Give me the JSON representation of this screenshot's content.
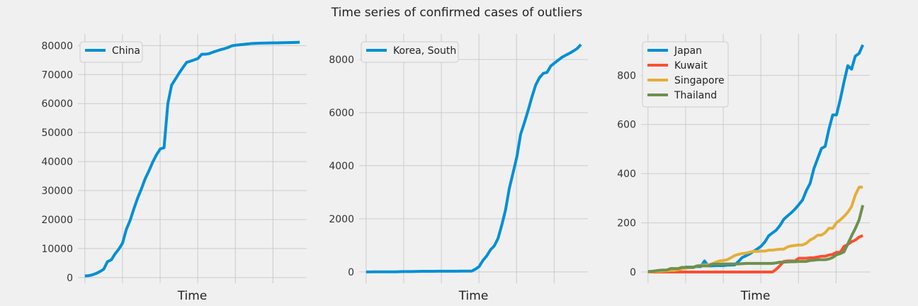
{
  "figure": {
    "suptitle": "Time series of confirmed cases of outliers"
  },
  "chart_data": [
    {
      "type": "line",
      "xlabel": "Time",
      "ylabel": "",
      "ylim": [
        -2000,
        84000
      ],
      "yticks": [
        0,
        10000,
        20000,
        30000,
        40000,
        50000,
        60000,
        70000,
        80000
      ],
      "x_ticks_labeled": false,
      "legend": "top-left",
      "grid": true,
      "x": [
        0,
        1,
        2,
        3,
        4,
        5,
        6,
        7,
        8,
        9,
        10,
        11,
        12,
        13,
        14,
        15,
        16,
        17,
        18,
        19,
        20,
        21,
        22,
        23,
        24,
        25,
        26,
        27,
        28,
        29,
        30,
        31,
        32,
        33,
        34,
        35,
        36,
        37,
        38,
        39,
        40,
        41,
        42,
        43,
        44,
        45,
        46,
        47,
        48,
        49,
        50,
        51,
        52,
        53,
        54,
        55,
        56,
        57
      ],
      "series": [
        {
          "name": "China",
          "color": "#008fd5",
          "values": [
            548,
            643,
            920,
            1406,
            2075,
            2877,
            5509,
            6087,
            8141,
            9802,
            11891,
            16630,
            19716,
            23707,
            27440,
            30587,
            34110,
            36814,
            39829,
            42354,
            44386,
            44759,
            59895,
            66358,
            68413,
            70513,
            72434,
            74211,
            74619,
            75077,
            75550,
            77001,
            77022,
            77241,
            77754,
            78166,
            78600,
            78928,
            79356,
            79932,
            80136,
            80261,
            80386,
            80537,
            80690,
            80770,
            80823,
            80860,
            80887,
            80921,
            80932,
            80945,
            80977,
            81003,
            81033,
            81058,
            81102,
            81156
          ]
        }
      ]
    },
    {
      "type": "line",
      "xlabel": "Time",
      "ylabel": "",
      "ylim": [
        -430,
        8960
      ],
      "yticks": [
        0,
        2000,
        4000,
        6000,
        8000
      ],
      "x_ticks_labeled": false,
      "legend": "top-left",
      "grid": true,
      "x": [
        0,
        1,
        2,
        3,
        4,
        5,
        6,
        7,
        8,
        9,
        10,
        11,
        12,
        13,
        14,
        15,
        16,
        17,
        18,
        19,
        20,
        21,
        22,
        23,
        24,
        25,
        26,
        27,
        28,
        29,
        30,
        31,
        32,
        33,
        34,
        35,
        36,
        37,
        38,
        39,
        40,
        41,
        42,
        43,
        44,
        45,
        46,
        47,
        48,
        49,
        50,
        51,
        52,
        53,
        54,
        55,
        56,
        57
      ],
      "series": [
        {
          "name": "Korea, South",
          "color": "#008fd5",
          "values": [
            1,
            1,
            2,
            2,
            3,
            4,
            4,
            4,
            4,
            11,
            12,
            15,
            15,
            16,
            19,
            23,
            24,
            24,
            25,
            27,
            28,
            28,
            28,
            28,
            28,
            29,
            30,
            31,
            31,
            104,
            204,
            433,
            602,
            833,
            977,
            1261,
            1766,
            2337,
            3150,
            3736,
            4335,
            5186,
            5621,
            6088,
            6593,
            7041,
            7314,
            7478,
            7513,
            7755,
            7869,
            7979,
            8086,
            8162,
            8236,
            8320,
            8413,
            8565
          ]
        }
      ]
    },
    {
      "type": "line",
      "xlabel": "Time",
      "ylabel": "",
      "ylim": [
        -46,
        968
      ],
      "yticks": [
        0,
        200,
        400,
        600,
        800
      ],
      "x_ticks_labeled": false,
      "legend": "top-left",
      "grid": true,
      "x": [
        0,
        1,
        2,
        3,
        4,
        5,
        6,
        7,
        8,
        9,
        10,
        11,
        12,
        13,
        14,
        15,
        16,
        17,
        18,
        19,
        20,
        21,
        22,
        23,
        24,
        25,
        26,
        27,
        28,
        29,
        30,
        31,
        32,
        33,
        34,
        35,
        36,
        37,
        38,
        39,
        40,
        41,
        42,
        43,
        44,
        45,
        46,
        47,
        48,
        49,
        50,
        51,
        52,
        53,
        54,
        55,
        56,
        57
      ],
      "series": [
        {
          "name": "Japan",
          "color": "#008fd5",
          "values": [
            2,
            1,
            2,
            2,
            4,
            4,
            7,
            7,
            11,
            15,
            20,
            20,
            20,
            22,
            22,
            45,
            25,
            25,
            26,
            26,
            26,
            28,
            28,
            29,
            43,
            59,
            66,
            74,
            84,
            94,
            105,
            122,
            147,
            159,
            170,
            189,
            214,
            228,
            241,
            256,
            274,
            293,
            331,
            360,
            420,
            461,
            502,
            511,
            581,
            639,
            639,
            701,
            773,
            839,
            825,
            878,
            889,
            924
          ]
        },
        {
          "name": "Kuwait",
          "color": "#fc4f30",
          "values": [
            0,
            0,
            0,
            0,
            0,
            0,
            0,
            0,
            0,
            0,
            0,
            0,
            0,
            0,
            0,
            0,
            0,
            0,
            0,
            0,
            0,
            0,
            0,
            0,
            0,
            0,
            0,
            0,
            0,
            0,
            0,
            0,
            0,
            0,
            11,
            26,
            43,
            45,
            45,
            45,
            56,
            56,
            56,
            58,
            58,
            61,
            64,
            64,
            69,
            72,
            80,
            80,
            104,
            112,
            123,
            130,
            142,
            148
          ]
        },
        {
          "name": "Singapore",
          "color": "#e5ae38",
          "values": [
            0,
            1,
            3,
            3,
            4,
            5,
            7,
            7,
            10,
            13,
            16,
            18,
            18,
            24,
            28,
            28,
            30,
            33,
            40,
            45,
            47,
            50,
            58,
            67,
            72,
            75,
            77,
            81,
            84,
            84,
            85,
            85,
            89,
            89,
            91,
            93,
            93,
            102,
            106,
            108,
            110,
            110,
            117,
            130,
            138,
            150,
            150,
            160,
            178,
            178,
            200,
            212,
            226,
            243,
            266,
            313,
            345,
            345
          ]
        },
        {
          "name": "Thailand",
          "color": "#6d904f",
          "values": [
            2,
            3,
            5,
            7,
            8,
            8,
            14,
            14,
            14,
            19,
            19,
            19,
            19,
            25,
            25,
            25,
            25,
            32,
            32,
            32,
            33,
            33,
            33,
            33,
            33,
            34,
            35,
            35,
            35,
            35,
            35,
            35,
            35,
            35,
            37,
            40,
            40,
            41,
            42,
            42,
            43,
            43,
            43,
            47,
            48,
            50,
            50,
            50,
            53,
            59,
            70,
            75,
            82,
            114,
            147,
            177,
            212,
            272
          ]
        }
      ]
    }
  ]
}
